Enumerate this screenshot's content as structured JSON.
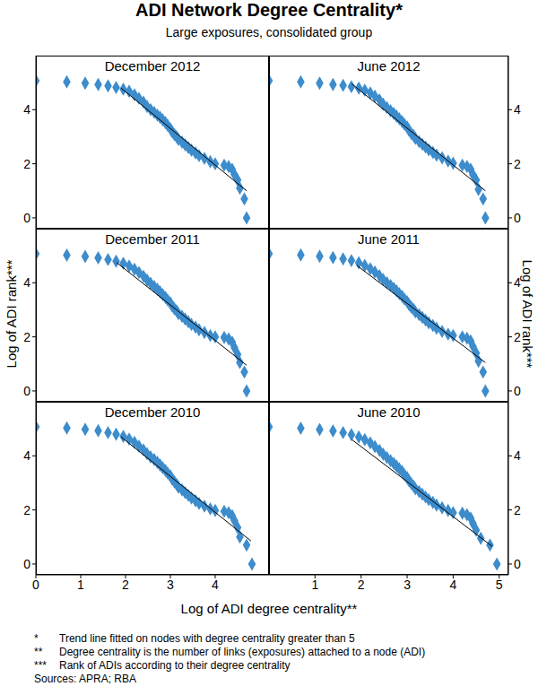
{
  "title": "ADI Network Degree Centrality*",
  "subtitle": "Large exposures, consolidated group",
  "x_label": "Log of ADI degree centrality**",
  "y_label": "Log of ADI rank***",
  "notes": [
    {
      "mark": "*",
      "text": "Trend line fitted on nodes with degree centrality greater than 5"
    },
    {
      "mark": "**",
      "text": "Degree centrality is the number of links (exposures) attached to a node (ADI)"
    },
    {
      "mark": "***",
      "text": "Rank of ADIs according to their degree centrality"
    }
  ],
  "sources": "Sources: APRA; RBA",
  "chart_data": [
    {
      "type": "scatter",
      "title": "December 2012",
      "xlim": [
        0,
        5.2
      ],
      "xticks": [
        0,
        1,
        2,
        3,
        4
      ],
      "ylim": [
        -0.4,
        6
      ],
      "yticks": [
        0,
        2,
        4
      ],
      "tick_labels": "y",
      "series": [
        {
          "type": "scatter",
          "marker": "diamond",
          "color": "#3d8ccc",
          "x": [
            0,
            0.69,
            1.1,
            1.39,
            1.61,
            1.79,
            1.95,
            2.08,
            2.2,
            2.3,
            2.4,
            2.48,
            2.56,
            2.64,
            2.71,
            2.77,
            2.83,
            2.89,
            2.94,
            3.0,
            3.04,
            3.09,
            3.14,
            3.18,
            3.26,
            3.33,
            3.4,
            3.47,
            3.56,
            3.64,
            3.76,
            3.89,
            4.0,
            4.2,
            4.3,
            4.38,
            4.43,
            4.5,
            4.55,
            4.65,
            4.7
          ],
          "values": [
            5.07,
            5.03,
            4.98,
            4.93,
            4.88,
            4.82,
            4.76,
            4.68,
            4.55,
            4.42,
            4.28,
            4.12,
            4.0,
            3.9,
            3.8,
            3.72,
            3.62,
            3.52,
            3.42,
            3.3,
            3.18,
            3.08,
            3.0,
            2.9,
            2.8,
            2.7,
            2.6,
            2.5,
            2.4,
            2.3,
            2.2,
            2.08,
            2.0,
            1.95,
            1.9,
            1.79,
            1.6,
            1.4,
            1.1,
            0.7,
            0.0
          ]
        },
        {
          "type": "line",
          "color": "#000000",
          "x": [
            1.9,
            4.7
          ],
          "values": [
            4.8,
            1.0
          ]
        }
      ]
    },
    {
      "type": "scatter",
      "title": "June 2012",
      "xlim": [
        0,
        5.2
      ],
      "xticks": [
        1,
        2,
        3,
        4,
        5
      ],
      "ylim": [
        -0.4,
        6
      ],
      "yticks": [
        0,
        2,
        4
      ],
      "tick_labels": "y",
      "series": [
        {
          "type": "scatter",
          "marker": "diamond",
          "color": "#3d8ccc",
          "x": [
            0,
            0.69,
            1.1,
            1.39,
            1.61,
            1.79,
            1.95,
            2.08,
            2.2,
            2.3,
            2.4,
            2.48,
            2.56,
            2.64,
            2.71,
            2.77,
            2.83,
            2.89,
            2.94,
            3.0,
            3.04,
            3.09,
            3.14,
            3.18,
            3.26,
            3.33,
            3.4,
            3.47,
            3.56,
            3.64,
            3.76,
            3.89,
            4.0,
            4.2,
            4.3,
            4.38,
            4.43,
            4.5,
            4.55,
            4.65,
            4.7
          ],
          "values": [
            5.07,
            5.03,
            4.98,
            4.93,
            4.9,
            4.85,
            4.8,
            4.72,
            4.62,
            4.5,
            4.36,
            4.2,
            4.08,
            3.96,
            3.86,
            3.76,
            3.66,
            3.56,
            3.46,
            3.36,
            3.24,
            3.12,
            3.04,
            2.94,
            2.82,
            2.72,
            2.62,
            2.52,
            2.42,
            2.32,
            2.22,
            2.1,
            2.02,
            1.95,
            1.9,
            1.8,
            1.6,
            1.4,
            1.05,
            0.7,
            0.0
          ]
        },
        {
          "type": "line",
          "color": "#000000",
          "x": [
            1.8,
            4.7
          ],
          "values": [
            4.95,
            1.0
          ]
        }
      ]
    },
    {
      "type": "scatter",
      "title": "December 2011",
      "xlim": [
        0,
        5.2
      ],
      "xticks": [
        0,
        1,
        2,
        3,
        4
      ],
      "ylim": [
        -0.4,
        6
      ],
      "yticks": [
        0,
        2,
        4
      ],
      "tick_labels": "y",
      "series": [
        {
          "type": "scatter",
          "marker": "diamond",
          "color": "#3d8ccc",
          "x": [
            0,
            0.69,
            1.1,
            1.39,
            1.61,
            1.79,
            1.95,
            2.08,
            2.2,
            2.3,
            2.4,
            2.48,
            2.56,
            2.64,
            2.71,
            2.77,
            2.83,
            2.89,
            2.94,
            3.0,
            3.04,
            3.09,
            3.14,
            3.18,
            3.26,
            3.33,
            3.4,
            3.47,
            3.56,
            3.64,
            3.76,
            3.89,
            4.0,
            4.2,
            4.3,
            4.38,
            4.43,
            4.5,
            4.55,
            4.65,
            4.7
          ],
          "values": [
            5.07,
            5.02,
            4.97,
            4.92,
            4.86,
            4.8,
            4.72,
            4.62,
            4.5,
            4.38,
            4.24,
            4.1,
            3.98,
            3.86,
            3.76,
            3.66,
            3.56,
            3.46,
            3.36,
            3.26,
            3.14,
            3.04,
            2.96,
            2.86,
            2.76,
            2.66,
            2.56,
            2.46,
            2.36,
            2.26,
            2.16,
            2.05,
            2.0,
            1.98,
            1.92,
            1.8,
            1.6,
            1.35,
            1.05,
            0.7,
            0.0
          ]
        },
        {
          "type": "line",
          "color": "#000000",
          "x": [
            1.8,
            4.7
          ],
          "values": [
            4.75,
            0.95
          ]
        }
      ]
    },
    {
      "type": "scatter",
      "title": "June 2011",
      "xlim": [
        0,
        5.2
      ],
      "xticks": [
        1,
        2,
        3,
        4,
        5
      ],
      "ylim": [
        -0.4,
        6
      ],
      "yticks": [
        0,
        2,
        4
      ],
      "tick_labels": "y",
      "series": [
        {
          "type": "scatter",
          "marker": "diamond",
          "color": "#3d8ccc",
          "x": [
            0,
            0.69,
            1.1,
            1.39,
            1.61,
            1.79,
            1.95,
            2.08,
            2.2,
            2.3,
            2.4,
            2.48,
            2.56,
            2.64,
            2.71,
            2.77,
            2.83,
            2.89,
            2.94,
            3.0,
            3.04,
            3.09,
            3.14,
            3.18,
            3.26,
            3.33,
            3.4,
            3.47,
            3.56,
            3.64,
            3.76,
            3.89,
            4.0,
            4.2,
            4.3,
            4.38,
            4.43,
            4.5,
            4.55,
            4.65,
            4.7
          ],
          "values": [
            5.07,
            5.03,
            4.98,
            4.93,
            4.88,
            4.82,
            4.74,
            4.64,
            4.52,
            4.4,
            4.26,
            4.12,
            4.0,
            3.9,
            3.8,
            3.7,
            3.6,
            3.5,
            3.4,
            3.3,
            3.2,
            3.1,
            3.02,
            2.92,
            2.82,
            2.72,
            2.62,
            2.52,
            2.42,
            2.32,
            2.2,
            2.1,
            2.05,
            2.0,
            1.95,
            1.85,
            1.65,
            1.4,
            1.1,
            0.7,
            0.0
          ]
        },
        {
          "type": "line",
          "color": "#000000",
          "x": [
            1.9,
            4.7
          ],
          "values": [
            4.65,
            1.05
          ]
        }
      ]
    },
    {
      "type": "scatter",
      "title": "December 2010",
      "xlim": [
        0,
        5.2
      ],
      "xticks": [
        0,
        1,
        2,
        3,
        4
      ],
      "ylim": [
        -0.4,
        6
      ],
      "yticks": [
        0,
        2,
        4
      ],
      "series": [
        {
          "type": "scatter",
          "marker": "diamond",
          "color": "#3d8ccc",
          "x": [
            0,
            0.69,
            1.1,
            1.39,
            1.61,
            1.79,
            1.95,
            2.08,
            2.2,
            2.3,
            2.4,
            2.48,
            2.56,
            2.64,
            2.71,
            2.77,
            2.83,
            2.89,
            2.94,
            3.0,
            3.04,
            3.09,
            3.14,
            3.18,
            3.26,
            3.33,
            3.4,
            3.47,
            3.56,
            3.64,
            3.76,
            3.89,
            4.0,
            4.2,
            4.3,
            4.38,
            4.43,
            4.5,
            4.55,
            4.7,
            4.82
          ],
          "values": [
            5.07,
            5.03,
            4.98,
            4.93,
            4.86,
            4.8,
            4.72,
            4.62,
            4.5,
            4.36,
            4.22,
            4.08,
            3.96,
            3.86,
            3.76,
            3.66,
            3.56,
            3.46,
            3.36,
            3.26,
            3.14,
            3.04,
            2.94,
            2.84,
            2.74,
            2.64,
            2.54,
            2.44,
            2.34,
            2.24,
            2.14,
            2.04,
            1.98,
            1.95,
            1.9,
            1.78,
            1.6,
            1.35,
            1.0,
            0.7,
            0.0
          ]
        },
        {
          "type": "line",
          "color": "#000000",
          "x": [
            1.9,
            4.8
          ],
          "values": [
            4.7,
            0.85
          ]
        }
      ]
    },
    {
      "type": "scatter",
      "title": "June 2010",
      "xlim": [
        0,
        5.2
      ],
      "xticks": [
        1,
        2,
        3,
        4,
        5
      ],
      "ylim": [
        -0.4,
        6
      ],
      "yticks": [
        0,
        2,
        4
      ],
      "series": [
        {
          "type": "scatter",
          "marker": "diamond",
          "color": "#3d8ccc",
          "x": [
            0,
            0.69,
            1.1,
            1.39,
            1.61,
            1.79,
            1.95,
            2.08,
            2.2,
            2.3,
            2.4,
            2.48,
            2.56,
            2.64,
            2.71,
            2.77,
            2.83,
            2.89,
            2.94,
            3.0,
            3.04,
            3.09,
            3.14,
            3.18,
            3.26,
            3.33,
            3.4,
            3.47,
            3.56,
            3.64,
            3.76,
            3.89,
            4.0,
            4.2,
            4.3,
            4.38,
            4.43,
            4.5,
            4.6,
            4.8,
            4.95
          ],
          "values": [
            5.07,
            5.02,
            4.97,
            4.92,
            4.86,
            4.78,
            4.7,
            4.6,
            4.48,
            4.34,
            4.2,
            4.06,
            3.94,
            3.82,
            3.72,
            3.62,
            3.52,
            3.42,
            3.3,
            3.2,
            3.08,
            2.98,
            2.88,
            2.78,
            2.68,
            2.58,
            2.48,
            2.38,
            2.28,
            2.18,
            2.08,
            1.98,
            1.9,
            1.88,
            1.82,
            1.7,
            1.5,
            1.25,
            0.95,
            0.7,
            0.0
          ]
        },
        {
          "type": "line",
          "color": "#000000",
          "x": [
            1.8,
            4.85
          ],
          "values": [
            4.6,
            0.65
          ]
        }
      ]
    }
  ]
}
